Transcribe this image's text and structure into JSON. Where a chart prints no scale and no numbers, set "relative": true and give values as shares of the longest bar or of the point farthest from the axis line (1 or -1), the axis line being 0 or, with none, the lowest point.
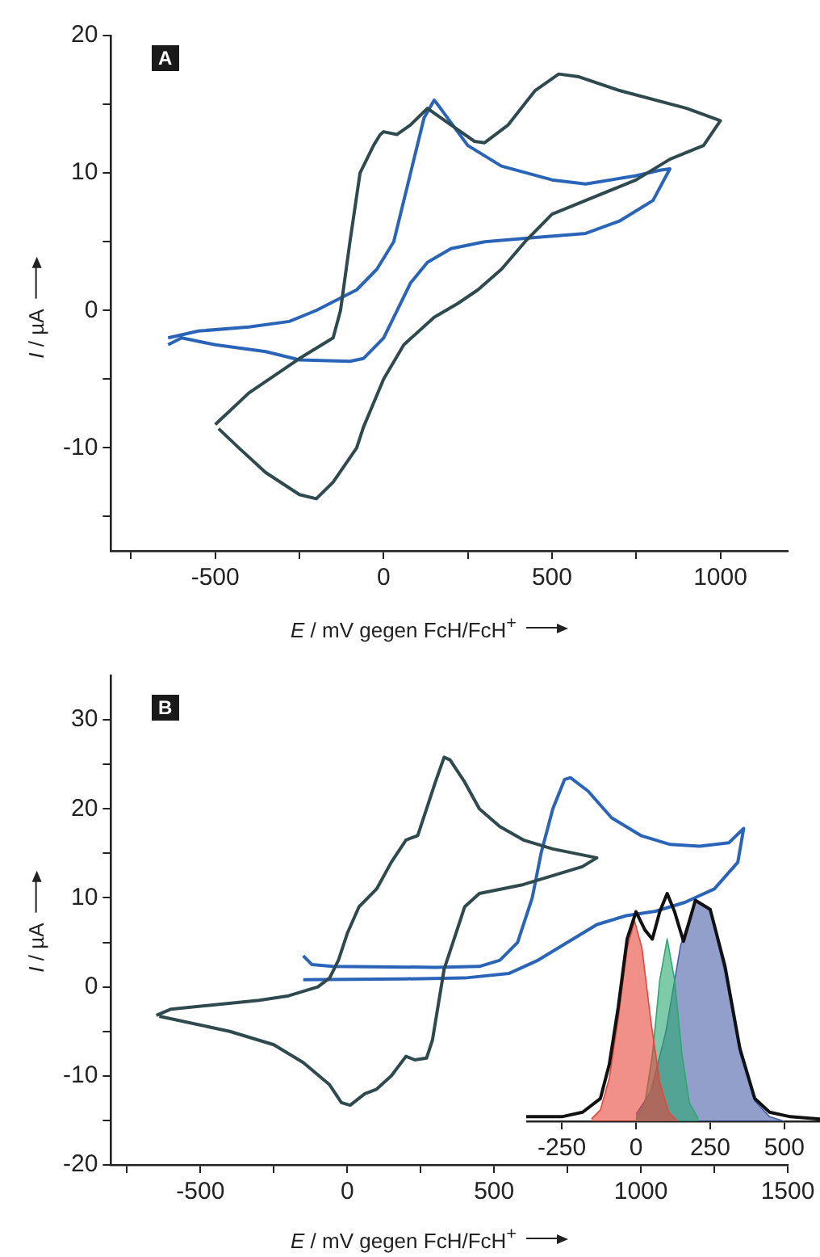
{
  "chart_data": [
    {
      "type": "line",
      "annotations": [
        "A"
      ],
      "xlabel": "E / mV gegen FcH/FcH$^{+}$",
      "ylabel": "I / µA",
      "marker": "none",
      "grid": false,
      "xlim": [
        -810,
        1200
      ],
      "xticks": [
        {
          "value": -750,
          "label": null
        },
        -500,
        {
          "value": -250,
          "label": null
        },
        0,
        {
          "value": 250,
          "label": null
        },
        500,
        {
          "value": 750,
          "label": null
        },
        1000
      ],
      "ylim": [
        -17.5,
        20
      ],
      "yticks": [
        {
          "value": -15,
          "label": null
        },
        -10,
        {
          "value": -5,
          "label": null
        },
        0,
        {
          "value": 5,
          "label": null
        },
        10,
        {
          "value": 15,
          "label": null
        },
        20
      ],
      "series": [
        {
          "color": "#2f4a4e",
          "x": [
            -500,
            -400,
            -250,
            -150,
            -128,
            -100,
            -70,
            -30,
            -10,
            0,
            40,
            80,
            130,
            200,
            270,
            300,
            370,
            450,
            520,
            580,
            700,
            900,
            1000,
            950,
            850,
            750,
            600,
            500,
            420,
            350,
            280,
            220,
            150,
            60,
            0,
            -60,
            -80,
            -150,
            -200,
            -250,
            -350,
            -430,
            -490
          ],
          "values": [
            -8.3,
            -6,
            -3.5,
            -2,
            0,
            5,
            10,
            12,
            12.8,
            13,
            12.8,
            13.5,
            14.7,
            13.5,
            12.3,
            12.2,
            13.5,
            16,
            17.2,
            17,
            16,
            14.7,
            13.8,
            12,
            11,
            9.5,
            8,
            7,
            5,
            3,
            1.5,
            0.5,
            -0.5,
            -2.5,
            -5,
            -8.5,
            -10,
            -12.5,
            -13.7,
            -13.4,
            -11.8,
            -10,
            -8.6
          ]
        },
        {
          "color": "#2a64b8",
          "x": [
            -640,
            -600,
            -500,
            -350,
            -250,
            -100,
            -60,
            0,
            40,
            80,
            130,
            200,
            300,
            450,
            600,
            700,
            800,
            850,
            820,
            750,
            600,
            500,
            350,
            250,
            160,
            150,
            120,
            80,
            30,
            -20,
            -80,
            -200,
            -280,
            -400,
            -550,
            -640
          ],
          "values": [
            -2.5,
            -2,
            -2.5,
            -3,
            -3.6,
            -3.7,
            -3.5,
            -2,
            0,
            2,
            3.5,
            4.5,
            5,
            5.3,
            5.6,
            6.5,
            8,
            10.3,
            10.2,
            9.8,
            9.2,
            9.5,
            10.5,
            12,
            15,
            15.3,
            14,
            10,
            5,
            3,
            1.5,
            0,
            -0.8,
            -1.2,
            -1.5,
            -2
          ]
        }
      ]
    },
    {
      "type": "line",
      "annotations": [
        "B"
      ],
      "xlabel": "E / mV gegen FcH/FcH$^{+}$",
      "ylabel": "I / µA",
      "marker": "none",
      "grid": false,
      "xlim": [
        -805,
        1500
      ],
      "xticks": [
        {
          "value": -750,
          "label": null
        },
        -500,
        {
          "value": -250,
          "label": null
        },
        0,
        {
          "value": 250,
          "label": null
        },
        500,
        {
          "value": 750,
          "label": null
        },
        1000,
        {
          "value": 1250,
          "label": null
        },
        1500
      ],
      "ylim": [
        -20,
        35
      ],
      "yticks": [
        -20,
        {
          "value": -15,
          "label": null
        },
        -10,
        {
          "value": -5,
          "label": null
        },
        0,
        {
          "value": 5,
          "label": null
        },
        10,
        {
          "value": 15,
          "label": null
        },
        20,
        {
          "value": 25,
          "label": null
        },
        30
      ],
      "series": [
        {
          "color": "#2f4a4e",
          "x": [
            -650,
            -600,
            -450,
            -300,
            -200,
            -100,
            -60,
            -30,
            0,
            40,
            100,
            150,
            200,
            240,
            270,
            300,
            330,
            350,
            400,
            450,
            520,
            600,
            700,
            850,
            800,
            700,
            600,
            450,
            400,
            370,
            330,
            310,
            290,
            270,
            230,
            200,
            150,
            100,
            60,
            10,
            -20,
            -60,
            -150,
            -250,
            -400,
            -640
          ],
          "values": [
            -3.2,
            -2.5,
            -2,
            -1.5,
            -1,
            0,
            1,
            3,
            6,
            9,
            11,
            14,
            16.5,
            17,
            20,
            23,
            25.8,
            25.5,
            23,
            20,
            18,
            16.5,
            15.5,
            14.5,
            13.5,
            12.5,
            11.5,
            10.5,
            9,
            6,
            2,
            -2,
            -6,
            -8,
            -8.2,
            -7.8,
            -10,
            -11.5,
            -12,
            -13.3,
            -13,
            -11,
            -8.5,
            -6.5,
            -5,
            -3.3
          ]
        },
        {
          "color": "#2a64b8",
          "x": [
            -150,
            -120,
            -50,
            300,
            450,
            520,
            580,
            630,
            660,
            700,
            740,
            760,
            820,
            900,
            1000,
            1100,
            1200,
            1300,
            1350,
            1330,
            1250,
            1150,
            1050,
            950,
            850,
            750,
            650,
            550,
            400,
            200,
            -150
          ],
          "values": [
            3.5,
            2.5,
            2.3,
            2.2,
            2.3,
            3,
            5,
            10,
            15,
            20,
            23.3,
            23.5,
            22,
            19,
            17,
            16,
            15.8,
            16.2,
            17.8,
            14,
            11,
            9.5,
            8.5,
            8,
            7,
            5,
            3,
            1.5,
            1,
            0.9,
            0.8
          ]
        }
      ]
    },
    {
      "type": "area",
      "relative": true,
      "tick_labels": "x",
      "grid": false,
      "marker": "none",
      "xlim": [
        -370,
        620
      ],
      "xticks": [
        -250,
        0,
        250,
        500
      ],
      "series": [
        {
          "color": "#e8443a",
          "x": [
            -150,
            -120,
            -90,
            -60,
            -30,
            -5,
            20,
            50,
            80,
            110,
            140
          ],
          "values": [
            0.01,
            0.05,
            0.19,
            0.45,
            0.76,
            0.88,
            0.76,
            0.44,
            0.17,
            0.04,
            0
          ]
        },
        {
          "color": "#2aa870",
          "x": [
            0,
            30,
            55,
            80,
            105,
            130,
            155,
            180,
            210
          ],
          "values": [
            0.01,
            0.08,
            0.29,
            0.62,
            0.8,
            0.62,
            0.29,
            0.08,
            0.01
          ]
        },
        {
          "color": "#4a5fa8",
          "x": [
            0,
            50,
            100,
            150,
            200,
            250,
            300,
            350,
            400,
            450,
            500
          ],
          "values": [
            0.03,
            0.13,
            0.39,
            0.77,
            0.97,
            0.93,
            0.65,
            0.3,
            0.09,
            0.02,
            0
          ]
        },
        {
          "type": "line",
          "color": "#111111",
          "x": [
            -370,
            -250,
            -180,
            -120,
            -90,
            -60,
            -30,
            0,
            30,
            55,
            80,
            105,
            130,
            160,
            200,
            250,
            300,
            350,
            400,
            450,
            520,
            620
          ],
          "values": [
            0.02,
            0.02,
            0.04,
            0.1,
            0.25,
            0.5,
            0.8,
            0.92,
            0.84,
            0.8,
            0.92,
            1,
            0.92,
            0.79,
            0.97,
            0.93,
            0.68,
            0.32,
            0.1,
            0.04,
            0.02,
            0.01
          ]
        }
      ]
    }
  ]
}
